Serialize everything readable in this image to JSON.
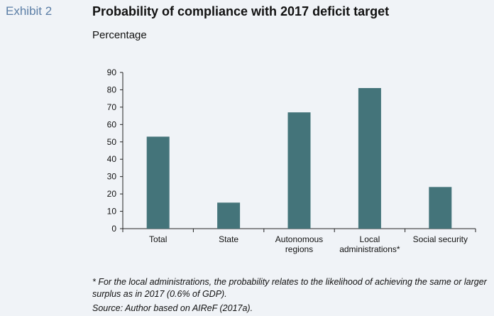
{
  "exhibit_label": "Exhibit 2",
  "footnote": "* For the local administrations, the probability relates to the likelihood of achieving the same or larger surplus as in 2017 (0.6% of GDP).",
  "source": "Source: Author based on AIReF (2017a).",
  "colors": {
    "bar": "#44747a",
    "panel": "#f0f3f7",
    "exhibit": "#5b7ea6"
  },
  "chart_data": {
    "type": "bar",
    "title": "Probability of compliance with 2017 deficit target",
    "subtitle": "Percentage",
    "categories": [
      [
        "Total"
      ],
      [
        "State"
      ],
      [
        "Autonomous",
        "regions"
      ],
      [
        "Local",
        "administrations*"
      ],
      [
        "Social security"
      ]
    ],
    "values": [
      53,
      15,
      67,
      81,
      24
    ],
    "ylim": [
      0,
      90
    ],
    "yticks": [
      "0",
      "10",
      "20",
      "30",
      "40",
      "50",
      "60",
      "70",
      "80",
      "90"
    ],
    "grid": false,
    "legend": "none"
  }
}
